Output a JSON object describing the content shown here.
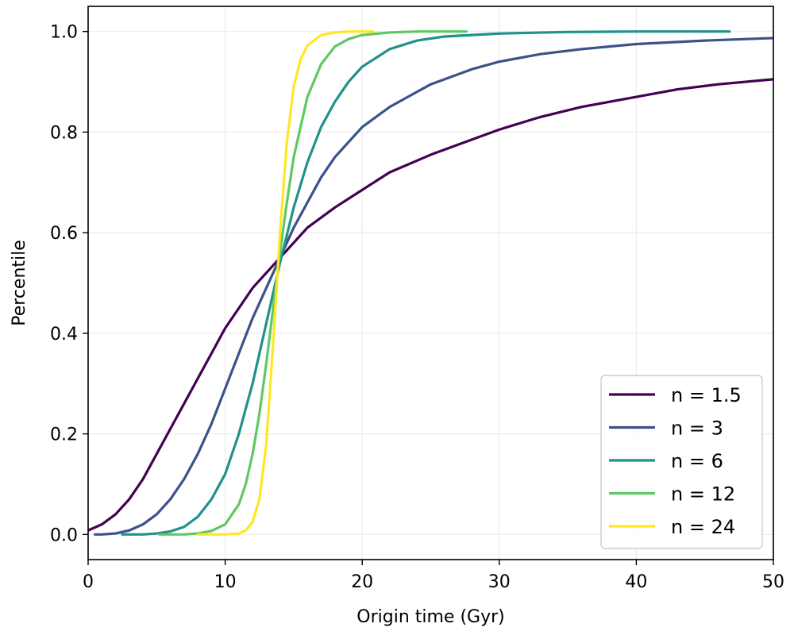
{
  "chart_data": {
    "type": "line",
    "title": "",
    "xlabel": "Origin time (Gyr)",
    "ylabel": "Percentile",
    "xlim": [
      0,
      50
    ],
    "ylim": [
      -0.05,
      1.05
    ],
    "xticks": [
      0,
      10,
      20,
      30,
      40,
      50
    ],
    "yticks": [
      0.0,
      0.2,
      0.4,
      0.6,
      0.8,
      1.0
    ],
    "xtick_labels": [
      "0",
      "10",
      "20",
      "30",
      "40",
      "50"
    ],
    "ytick_labels": [
      "0.0",
      "0.2",
      "0.4",
      "0.6",
      "0.8",
      "1.0"
    ],
    "grid": true,
    "legend_position": "lower-right",
    "series": [
      {
        "name": "n = 1.5",
        "color": "#440154",
        "points": [
          [
            0.0,
            0.008
          ],
          [
            1.0,
            0.02
          ],
          [
            2.0,
            0.04
          ],
          [
            3.0,
            0.07
          ],
          [
            4.0,
            0.11
          ],
          [
            5.0,
            0.16
          ],
          [
            6.0,
            0.21
          ],
          [
            7.0,
            0.26
          ],
          [
            8.0,
            0.31
          ],
          [
            9.0,
            0.36
          ],
          [
            10.0,
            0.41
          ],
          [
            11.0,
            0.45
          ],
          [
            12.0,
            0.49
          ],
          [
            13.0,
            0.52
          ],
          [
            14.0,
            0.55
          ],
          [
            15.0,
            0.58
          ],
          [
            16.0,
            0.61
          ],
          [
            18.0,
            0.65
          ],
          [
            20.0,
            0.685
          ],
          [
            22.0,
            0.72
          ],
          [
            25.0,
            0.755
          ],
          [
            28.0,
            0.785
          ],
          [
            30.0,
            0.805
          ],
          [
            33.0,
            0.83
          ],
          [
            36.0,
            0.85
          ],
          [
            40.0,
            0.87
          ],
          [
            43.0,
            0.885
          ],
          [
            46.0,
            0.895
          ],
          [
            50.0,
            0.905
          ]
        ]
      },
      {
        "name": "n = 3",
        "color": "#3b528b",
        "points": [
          [
            0.5,
            0.0
          ],
          [
            1.0,
            0.0
          ],
          [
            2.0,
            0.002
          ],
          [
            3.0,
            0.008
          ],
          [
            4.0,
            0.02
          ],
          [
            5.0,
            0.04
          ],
          [
            6.0,
            0.07
          ],
          [
            7.0,
            0.11
          ],
          [
            8.0,
            0.16
          ],
          [
            9.0,
            0.22
          ],
          [
            10.0,
            0.29
          ],
          [
            11.0,
            0.36
          ],
          [
            12.0,
            0.43
          ],
          [
            13.0,
            0.49
          ],
          [
            14.0,
            0.55
          ],
          [
            15.0,
            0.61
          ],
          [
            16.0,
            0.66
          ],
          [
            17.0,
            0.71
          ],
          [
            18.0,
            0.75
          ],
          [
            20.0,
            0.81
          ],
          [
            22.0,
            0.85
          ],
          [
            25.0,
            0.895
          ],
          [
            28.0,
            0.925
          ],
          [
            30.0,
            0.94
          ],
          [
            33.0,
            0.955
          ],
          [
            36.0,
            0.965
          ],
          [
            40.0,
            0.975
          ],
          [
            45.0,
            0.982
          ],
          [
            50.0,
            0.987
          ]
        ]
      },
      {
        "name": "n = 6",
        "color": "#21918c",
        "points": [
          [
            2.5,
            0.0
          ],
          [
            4.0,
            0.0
          ],
          [
            5.0,
            0.002
          ],
          [
            6.0,
            0.006
          ],
          [
            7.0,
            0.015
          ],
          [
            8.0,
            0.035
          ],
          [
            9.0,
            0.07
          ],
          [
            10.0,
            0.12
          ],
          [
            11.0,
            0.2
          ],
          [
            12.0,
            0.3
          ],
          [
            13.0,
            0.42
          ],
          [
            14.0,
            0.54
          ],
          [
            15.0,
            0.65
          ],
          [
            16.0,
            0.74
          ],
          [
            17.0,
            0.81
          ],
          [
            18.0,
            0.86
          ],
          [
            19.0,
            0.9
          ],
          [
            20.0,
            0.93
          ],
          [
            22.0,
            0.965
          ],
          [
            24.0,
            0.982
          ],
          [
            26.0,
            0.99
          ],
          [
            30.0,
            0.996
          ],
          [
            35.0,
            0.999
          ],
          [
            40.0,
            1.0
          ],
          [
            46.8,
            1.0
          ]
        ]
      },
      {
        "name": "n = 12",
        "color": "#5ec962",
        "points": [
          [
            5.2,
            0.0
          ],
          [
            7.0,
            0.0
          ],
          [
            8.0,
            0.002
          ],
          [
            9.0,
            0.007
          ],
          [
            10.0,
            0.02
          ],
          [
            11.0,
            0.06
          ],
          [
            11.5,
            0.1
          ],
          [
            12.0,
            0.16
          ],
          [
            12.5,
            0.24
          ],
          [
            13.0,
            0.34
          ],
          [
            13.5,
            0.45
          ],
          [
            14.0,
            0.56
          ],
          [
            14.5,
            0.66
          ],
          [
            15.0,
            0.75
          ],
          [
            16.0,
            0.87
          ],
          [
            17.0,
            0.935
          ],
          [
            18.0,
            0.97
          ],
          [
            19.0,
            0.985
          ],
          [
            20.0,
            0.993
          ],
          [
            22.0,
            0.998
          ],
          [
            24.0,
            1.0
          ],
          [
            27.6,
            1.0
          ]
        ]
      },
      {
        "name": "n = 24",
        "color": "#fde725",
        "points": [
          [
            8.0,
            0.0
          ],
          [
            10.0,
            0.0
          ],
          [
            11.0,
            0.002
          ],
          [
            11.5,
            0.008
          ],
          [
            12.0,
            0.025
          ],
          [
            12.5,
            0.07
          ],
          [
            13.0,
            0.18
          ],
          [
            13.5,
            0.38
          ],
          [
            14.0,
            0.6
          ],
          [
            14.5,
            0.78
          ],
          [
            15.0,
            0.89
          ],
          [
            15.5,
            0.945
          ],
          [
            16.0,
            0.972
          ],
          [
            17.0,
            0.993
          ],
          [
            18.0,
            0.998
          ],
          [
            19.0,
            1.0
          ],
          [
            20.8,
            1.0
          ]
        ]
      }
    ]
  }
}
